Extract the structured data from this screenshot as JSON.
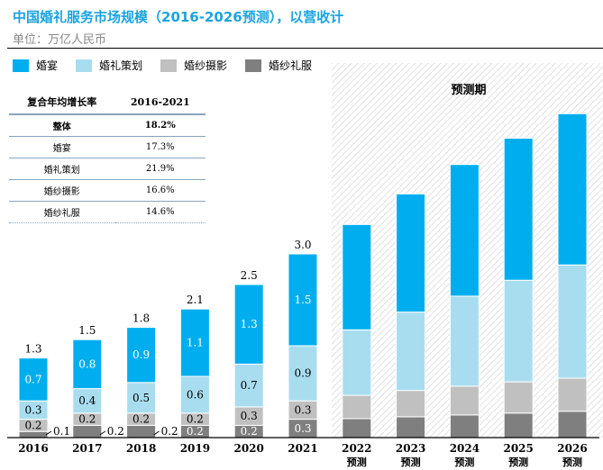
{
  "title": "中国婚礼服务市场规模（2016-2026预测），以营收计",
  "unit": "单位：万亿人民币",
  "forecast_label": "预测期",
  "cagr_table": {
    "headers": [
      "复合年均增长率",
      "2016-2021"
    ],
    "rows": [
      [
        "整体",
        "18.2%"
      ],
      [
        "婚宴",
        "17.3%"
      ],
      [
        "婚礼策划",
        "21.9%"
      ],
      [
        "婚纱摄影",
        "16.6%"
      ],
      [
        "婚纱礼服",
        "14.6%"
      ]
    ]
  },
  "chart_data": {
    "type": "bar",
    "stacked": true,
    "title": "中国婚礼服务市场规模（2016-2026预测），以营收计",
    "ylabel": "单位：万亿人民币",
    "categories": [
      "2016",
      "2017",
      "2018",
      "2019",
      "2020",
      "2021",
      "2022",
      "2023",
      "2024",
      "2025",
      "2026"
    ],
    "category_sublabels": [
      "",
      "",
      "",
      "",
      "",
      "",
      "预测",
      "预测",
      "预测",
      "预测",
      "预测"
    ],
    "legend_position": "top-left",
    "grid": false,
    "series": [
      {
        "name": "婚纱礼服",
        "color": "#7f7f7f",
        "values": [
          0.1,
          0.2,
          0.2,
          0.2,
          0.2,
          0.3,
          0.31,
          0.34,
          0.37,
          0.4,
          0.43
        ],
        "labeled": [
          true,
          true,
          true,
          true,
          true,
          true,
          false,
          false,
          false,
          false,
          false
        ]
      },
      {
        "name": "婚纱摄影",
        "color": "#c0c0c0",
        "values": [
          0.2,
          0.2,
          0.2,
          0.2,
          0.3,
          0.3,
          0.38,
          0.43,
          0.47,
          0.51,
          0.54
        ],
        "labeled": [
          true,
          true,
          true,
          true,
          true,
          true,
          false,
          false,
          false,
          false,
          false
        ]
      },
      {
        "name": "婚礼策划",
        "color": "#a8ddf0",
        "values": [
          0.3,
          0.4,
          0.5,
          0.6,
          0.7,
          0.9,
          1.07,
          1.28,
          1.47,
          1.66,
          1.85
        ],
        "labeled": [
          true,
          true,
          true,
          true,
          true,
          true,
          false,
          false,
          false,
          false,
          false
        ]
      },
      {
        "name": "婚宴",
        "color": "#00aeef",
        "values": [
          0.7,
          0.8,
          0.9,
          1.1,
          1.3,
          1.5,
          1.72,
          1.93,
          2.15,
          2.32,
          2.47
        ],
        "labeled": [
          true,
          true,
          true,
          true,
          true,
          true,
          false,
          false,
          false,
          false,
          false
        ]
      }
    ],
    "totals": [
      1.3,
      1.5,
      1.8,
      2.1,
      2.5,
      3.0,
      null,
      null,
      null,
      null,
      null
    ],
    "forecast_from": "2022"
  }
}
